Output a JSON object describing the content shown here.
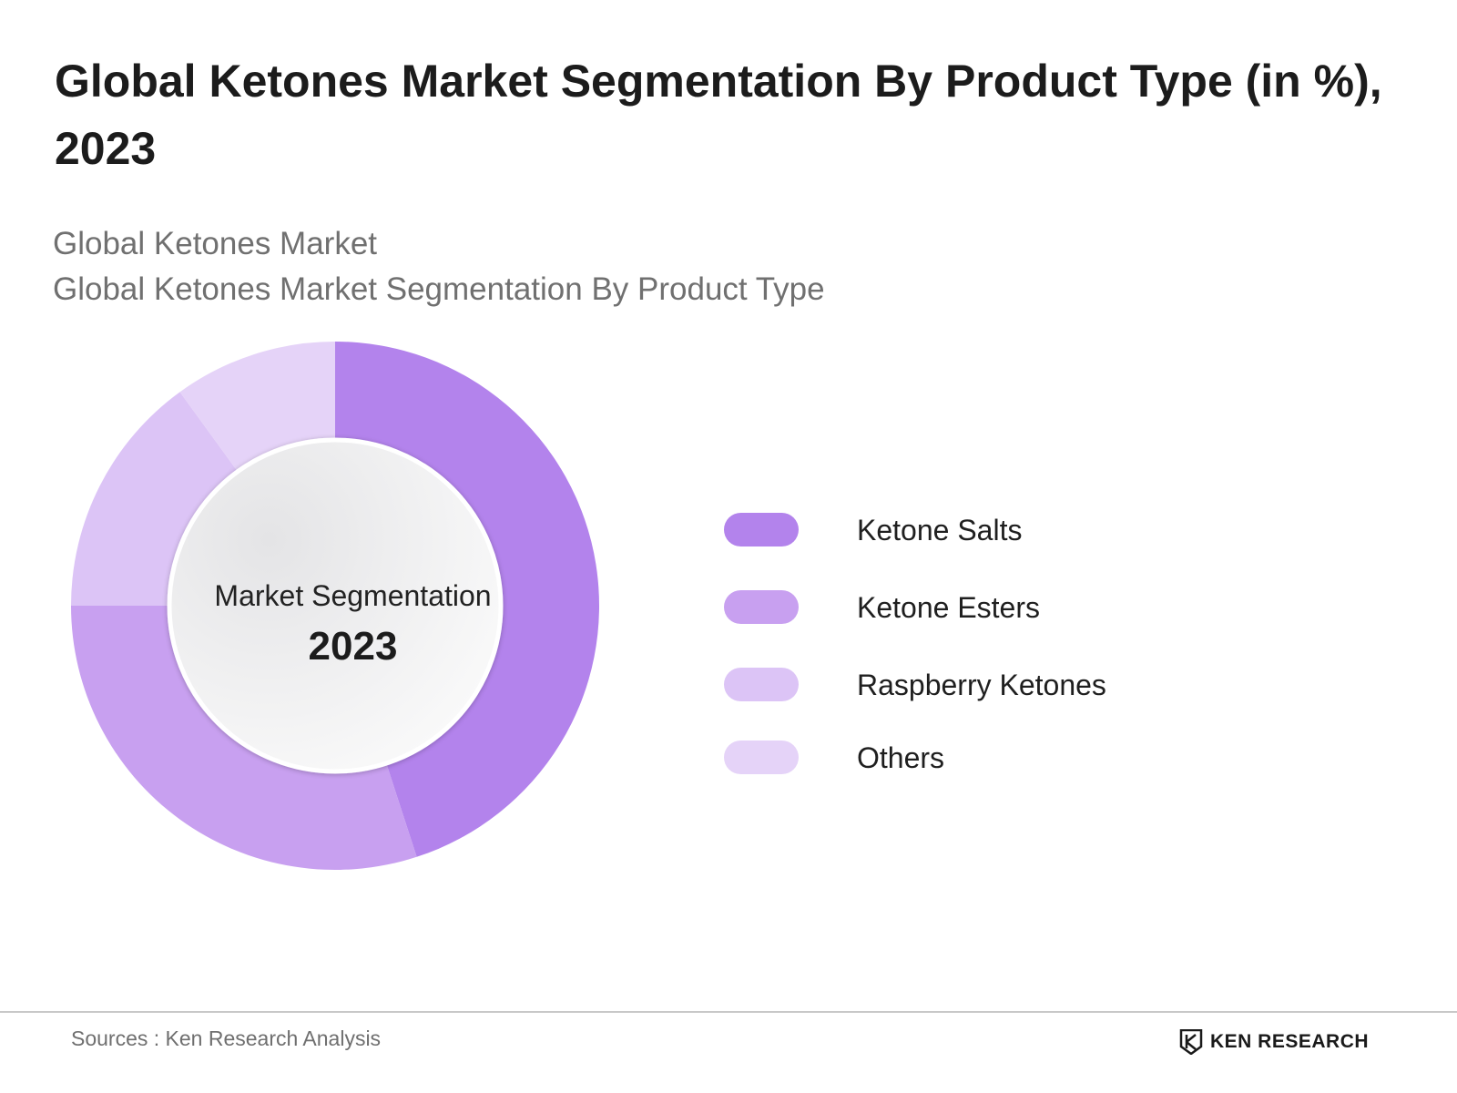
{
  "title": "Global Ketones Market Segmentation By Product Type (in %), 2023",
  "subtitle": {
    "line1": "Global Ketones Market",
    "line2": "Global Ketones Market Segmentation By Product Type"
  },
  "center": {
    "label": "Market Segmentation",
    "year": "2023"
  },
  "footer": {
    "source": "Sources : Ken Research Analysis",
    "brand": "KEN RESEARCH"
  },
  "chart_data": {
    "type": "pie",
    "donut": true,
    "categories": [
      "Ketone Salts",
      "Ketone Esters",
      "Raspberry Ketones",
      "Others"
    ],
    "values": [
      45,
      30,
      15,
      10
    ],
    "colors": [
      "#b383ec",
      "#c8a0f0",
      "#dcc4f6",
      "#e5d3f8"
    ],
    "legend_position": "right",
    "start_angle": "top, clockwise"
  },
  "legend": {
    "items": [
      {
        "label": "Ketone Salts",
        "color": "#b383ec"
      },
      {
        "label": "Ketone Esters",
        "color": "#c8a0f0"
      },
      {
        "label": "Raspberry Ketones",
        "color": "#dcc4f6"
      },
      {
        "label": "Others",
        "color": "#e5d3f8"
      }
    ]
  }
}
